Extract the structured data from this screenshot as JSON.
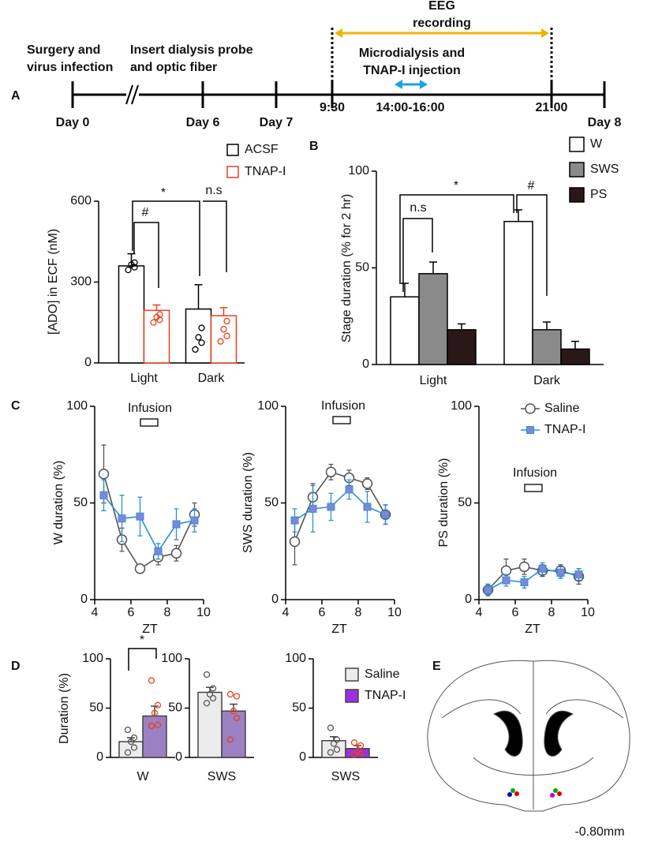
{
  "panels": [
    "A",
    "B",
    "C",
    "D",
    "E"
  ],
  "timeline": {
    "events": [
      [
        "Surgery and",
        "virus infection"
      ],
      [
        "Insert dialysis probe",
        "and optic fiber"
      ],
      [
        "EEG",
        "recording"
      ],
      [
        "Microdialysis and",
        "TNAP-I injection"
      ]
    ],
    "days": [
      "Day 0",
      "Day 6",
      "Day 7",
      "Day 8"
    ],
    "times": [
      "9:30",
      "14:00-16:00",
      "21:00"
    ]
  },
  "chart_data": [
    {
      "type": "bar",
      "ylabel": "[ADO] in ECF (nM)",
      "categories": [
        "Light",
        "Dark"
      ],
      "ylim": [
        0,
        600
      ],
      "yticks": [
        0,
        300,
        600
      ],
      "legend": true,
      "annotations": [
        "*",
        "#",
        "n.s"
      ],
      "series": [
        {
          "name": "ACSF",
          "color": "#000000",
          "fill": "#ffffff",
          "values": [
            360,
            200
          ],
          "errors": [
            45,
            90
          ],
          "points": [
            [
              345,
              355,
              365,
              372
            ],
            [
              50,
              75,
              95,
              130
            ]
          ]
        },
        {
          "name": "TNAP-I",
          "color": "#e8401c",
          "fill": "#ffffff",
          "values": [
            195,
            175
          ],
          "errors": [
            20,
            30
          ],
          "points": [
            [
              150,
              160,
              170,
              180
            ],
            [
              80,
              100,
              125,
              155
            ]
          ]
        }
      ]
    },
    {
      "type": "bar",
      "ylabel": "Stage duration (% for 2 hr)",
      "categories": [
        "Light",
        "Dark"
      ],
      "ylim": [
        0,
        100
      ],
      "yticks": [
        0,
        50,
        100
      ],
      "legend": true,
      "annotations": [
        "*",
        "#",
        "n.s"
      ],
      "series": [
        {
          "name": "W",
          "color": "#000000",
          "fill": "#ffffff",
          "values": [
            35,
            74
          ],
          "errors": [
            7,
            6
          ]
        },
        {
          "name": "SWS",
          "color": "#000000",
          "fill": "#8a8a8a",
          "values": [
            47,
            18
          ],
          "errors": [
            6,
            4
          ]
        },
        {
          "name": "PS",
          "color": "#000000",
          "fill": "#2a1818",
          "values": [
            18,
            8
          ],
          "errors": [
            3,
            4
          ]
        }
      ]
    },
    {
      "type": "line",
      "ylabel": "W duration (%)",
      "xlabel": "ZT",
      "x": [
        4.5,
        5.5,
        6.5,
        7.5,
        8.5,
        9.5
      ],
      "xlim": [
        4,
        10
      ],
      "xticks": [
        4,
        6,
        8,
        10
      ],
      "ylim": [
        0,
        100
      ],
      "yticks": [
        0,
        50,
        100
      ],
      "annotations": [
        "Infusion"
      ],
      "series": [
        {
          "color": "#555555",
          "marker": "circle",
          "marker_fill": "#ffffff",
          "values": [
            65,
            31,
            16,
            22,
            24,
            44
          ],
          "errors": [
            15,
            6,
            2,
            4,
            4,
            6
          ]
        },
        {
          "color": "#2f8fd8",
          "marker": "square",
          "marker_fill": "#7f86d8",
          "values": [
            54,
            42,
            43,
            25,
            39,
            41
          ],
          "errors": [
            8,
            12,
            10,
            4,
            8,
            6
          ]
        }
      ]
    },
    {
      "type": "line",
      "ylabel": "SWS duration (%)",
      "xlabel": "ZT",
      "x": [
        4.5,
        5.5,
        6.5,
        7.5,
        8.5,
        9.5
      ],
      "xlim": [
        4,
        10
      ],
      "xticks": [
        4,
        6,
        8,
        10
      ],
      "ylim": [
        0,
        100
      ],
      "yticks": [
        0,
        50,
        100
      ],
      "annotations": [
        "Infusion"
      ],
      "series": [
        {
          "color": "#555555",
          "marker": "circle",
          "marker_fill": "#ffffff",
          "values": [
            30,
            53,
            66,
            63,
            60,
            44
          ],
          "errors": [
            12,
            7,
            4,
            4,
            3,
            5
          ]
        },
        {
          "color": "#2f8fd8",
          "marker": "square",
          "marker_fill": "#7f86d8",
          "values": [
            41,
            47,
            48,
            57,
            48,
            44
          ],
          "errors": [
            6,
            12,
            7,
            5,
            8,
            5
          ]
        }
      ]
    },
    {
      "type": "line",
      "ylabel": "PS duration (%)",
      "xlabel": "ZT",
      "x": [
        4.5,
        5.5,
        6.5,
        7.5,
        8.5,
        9.5
      ],
      "xlim": [
        4,
        10
      ],
      "xticks": [
        4,
        6,
        8,
        10
      ],
      "ylim": [
        0,
        100
      ],
      "yticks": [
        0,
        50,
        100
      ],
      "annotations": [
        "Infusion"
      ],
      "legend": true,
      "series": [
        {
          "name": "Saline",
          "color": "#555555",
          "marker": "circle",
          "marker_fill": "#ffffff",
          "values": [
            5,
            15,
            17,
            15,
            15,
            12
          ],
          "errors": [
            3,
            6,
            4,
            3,
            3,
            4
          ]
        },
        {
          "name": "TNAP-I",
          "color": "#2f8fd8",
          "marker": "square",
          "marker_fill": "#7f86d8",
          "values": [
            5,
            10,
            9,
            16,
            14,
            13
          ],
          "errors": [
            3,
            3,
            3,
            3,
            3,
            3
          ]
        }
      ]
    },
    {
      "type": "bar",
      "ylabel": "Duration (%)",
      "categories": [
        "W"
      ],
      "ylim": [
        0,
        100
      ],
      "yticks": [
        0,
        50,
        100
      ],
      "annotations": [
        "*"
      ],
      "series": [
        {
          "color": "#444444",
          "fill": "#ececec",
          "point_color": "#555555",
          "values": [
            16
          ],
          "errors": [
            4
          ],
          "points": [
            [
              5,
              10,
              16,
              20,
              28
            ]
          ]
        },
        {
          "color": "#444444",
          "fill": "#9b80c4",
          "point_color": "#e8401c",
          "values": [
            42
          ],
          "errors": [
            10
          ],
          "points": [
            [
              32,
              33,
              45,
              53,
              78
            ]
          ]
        }
      ]
    },
    {
      "type": "bar",
      "categories": [
        "SWS"
      ],
      "ylim": [
        0,
        100
      ],
      "yticks": [
        0,
        50,
        100
      ],
      "series": [
        {
          "color": "#444444",
          "fill": "#ececec",
          "point_color": "#555555",
          "values": [
            66
          ],
          "errors": [
            5
          ],
          "points": [
            [
              55,
              60,
              64,
              70,
              84
            ]
          ]
        },
        {
          "color": "#444444",
          "fill": "#9b80c4",
          "point_color": "#e8401c",
          "values": [
            47
          ],
          "errors": [
            7
          ],
          "points": [
            [
              18,
              40,
              47,
              62,
              64
            ]
          ]
        }
      ]
    },
    {
      "type": "bar",
      "categories": [
        "SWS"
      ],
      "ylim": [
        0,
        100
      ],
      "yticks": [
        0,
        50,
        100
      ],
      "legend": true,
      "series": [
        {
          "name": "Saline",
          "color": "#444444",
          "fill": "#ececec",
          "point_color": "#555555",
          "values": [
            17
          ],
          "errors": [
            4
          ],
          "points": [
            [
              5,
              8,
              14,
              18,
              30
            ]
          ]
        },
        {
          "name": "TNAP-I",
          "color": "#444444",
          "fill": "#9b30e0",
          "point_color": "#e8401c",
          "values": [
            9
          ],
          "errors": [
            3
          ],
          "points": [
            [
              3,
              4,
              6,
              12,
              15
            ]
          ]
        }
      ]
    }
  ],
  "brain": {
    "label": "-0.80mm"
  }
}
